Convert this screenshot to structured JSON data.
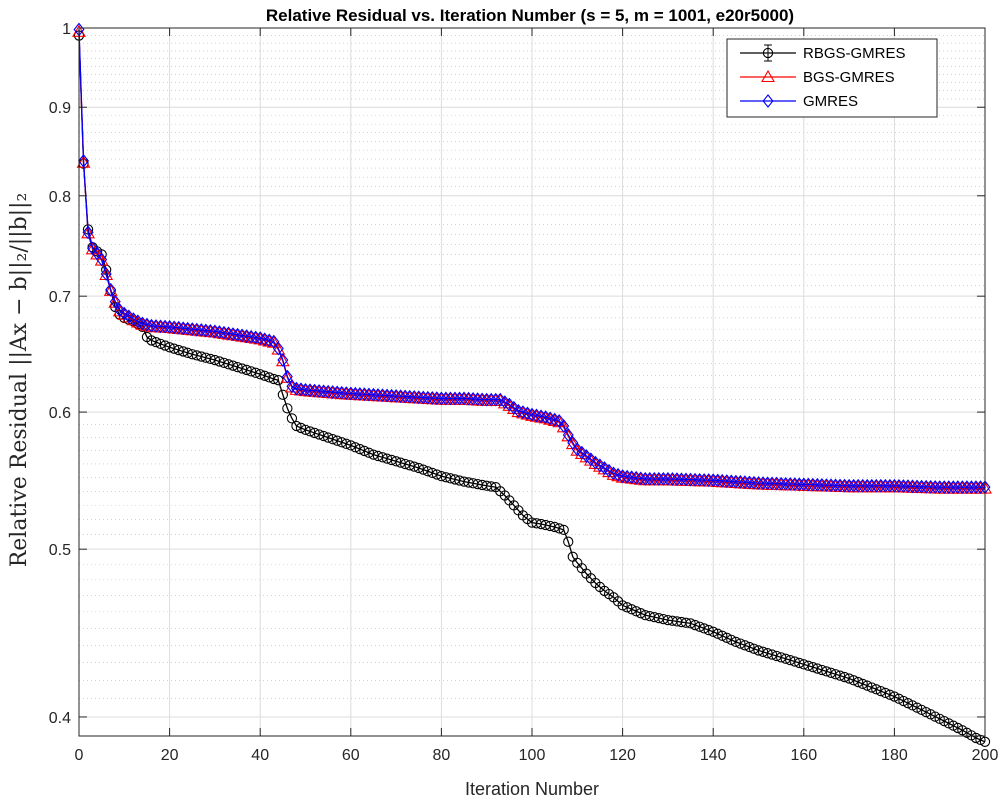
{
  "chart_data": {
    "type": "line",
    "title": "Relative Residual vs. Iteration Number (s = 5, m = 1001, e20r5000)",
    "xlabel": "Iteration Number",
    "ylabel": "Relative Residual ||Ax − b||₂/||b||₂",
    "xlim": [
      0,
      200
    ],
    "ylim": [
      0.39,
      1.0
    ],
    "yscale": "log",
    "grid": true,
    "legend_position": "top-right",
    "x_ticks": [
      "0",
      "20",
      "40",
      "60",
      "80",
      "100",
      "120",
      "140",
      "160",
      "180",
      "200"
    ],
    "y_ticks": [
      "0.4",
      "0.5",
      "0.6",
      "0.7",
      "0.8",
      "0.9",
      "1"
    ],
    "x_tick_values": [
      0,
      20,
      40,
      60,
      80,
      100,
      120,
      140,
      160,
      180,
      200
    ],
    "y_tick_values": [
      0.4,
      0.5,
      0.6,
      0.7,
      0.8,
      0.9,
      1.0
    ],
    "series": [
      {
        "name": "RBGS-GMRES",
        "color": "#000000",
        "marker": "circle",
        "x": [
          0,
          1,
          2,
          3,
          4,
          5,
          6,
          7,
          8,
          9,
          10,
          12,
          14,
          15,
          16,
          18,
          20,
          25,
          30,
          35,
          40,
          43,
          44,
          45,
          46,
          47,
          48,
          50,
          55,
          60,
          65,
          70,
          75,
          80,
          85,
          90,
          92,
          94,
          96,
          98,
          100,
          102,
          105,
          107,
          108,
          109,
          110,
          112,
          114,
          116,
          118,
          120,
          125,
          130,
          135,
          140,
          145,
          150,
          155,
          160,
          165,
          170,
          175,
          180,
          185,
          190,
          195,
          198,
          200
        ],
        "y": [
          0.99,
          0.835,
          0.765,
          0.747,
          0.743,
          0.74,
          0.725,
          0.705,
          0.69,
          0.683,
          0.68,
          0.677,
          0.672,
          0.663,
          0.66,
          0.657,
          0.654,
          0.648,
          0.643,
          0.637,
          0.631,
          0.627,
          0.626,
          0.614,
          0.603,
          0.595,
          0.589,
          0.586,
          0.58,
          0.574,
          0.567,
          0.562,
          0.557,
          0.551,
          0.547,
          0.544,
          0.543,
          0.537,
          0.53,
          0.523,
          0.518,
          0.517,
          0.515,
          0.513,
          0.505,
          0.495,
          0.491,
          0.484,
          0.478,
          0.473,
          0.469,
          0.464,
          0.458,
          0.455,
          0.453,
          0.448,
          0.442,
          0.437,
          0.433,
          0.429,
          0.425,
          0.421,
          0.416,
          0.411,
          0.405,
          0.399,
          0.393,
          0.389,
          0.387
        ]
      },
      {
        "name": "BGS-GMRES",
        "color": "#ff0000",
        "marker": "triangle",
        "x": [
          0,
          1,
          2,
          3,
          4,
          5,
          6,
          7,
          8,
          9,
          10,
          12,
          14,
          16,
          20,
          25,
          30,
          35,
          40,
          42,
          43,
          44,
          45,
          46,
          47,
          48,
          50,
          60,
          70,
          80,
          85,
          90,
          93,
          95,
          97,
          100,
          103,
          106,
          107,
          108,
          109,
          110,
          112,
          114,
          116,
          118,
          120,
          125,
          130,
          140,
          150,
          160,
          170,
          180,
          190,
          200
        ],
        "y": [
          0.995,
          0.836,
          0.761,
          0.745,
          0.74,
          0.734,
          0.72,
          0.705,
          0.694,
          0.686,
          0.683,
          0.678,
          0.674,
          0.672,
          0.671,
          0.669,
          0.667,
          0.664,
          0.661,
          0.659,
          0.658,
          0.652,
          0.642,
          0.628,
          0.62,
          0.618,
          0.617,
          0.614,
          0.612,
          0.61,
          0.61,
          0.609,
          0.609,
          0.605,
          0.6,
          0.597,
          0.595,
          0.592,
          0.588,
          0.581,
          0.575,
          0.57,
          0.565,
          0.56,
          0.556,
          0.552,
          0.55,
          0.548,
          0.548,
          0.547,
          0.545,
          0.544,
          0.543,
          0.543,
          0.542,
          0.542
        ]
      },
      {
        "name": "GMRES",
        "color": "#0000ff",
        "marker": "diamond",
        "x": [
          0,
          1,
          2,
          3,
          4,
          5,
          6,
          7,
          8,
          9,
          10,
          12,
          14,
          16,
          20,
          25,
          30,
          35,
          40,
          42,
          43,
          44,
          45,
          46,
          47,
          48,
          50,
          60,
          70,
          80,
          85,
          90,
          93,
          95,
          97,
          100,
          103,
          106,
          107,
          108,
          109,
          110,
          112,
          114,
          116,
          118,
          120,
          125,
          130,
          140,
          150,
          160,
          170,
          180,
          190,
          200
        ],
        "y": [
          0.998,
          0.838,
          0.762,
          0.746,
          0.741,
          0.735,
          0.721,
          0.706,
          0.695,
          0.687,
          0.684,
          0.679,
          0.675,
          0.673,
          0.672,
          0.67,
          0.668,
          0.665,
          0.662,
          0.66,
          0.659,
          0.653,
          0.643,
          0.629,
          0.621,
          0.619,
          0.618,
          0.615,
          0.613,
          0.611,
          0.611,
          0.61,
          0.61,
          0.606,
          0.601,
          0.598,
          0.596,
          0.593,
          0.589,
          0.582,
          0.576,
          0.571,
          0.566,
          0.561,
          0.557,
          0.553,
          0.551,
          0.549,
          0.549,
          0.548,
          0.546,
          0.545,
          0.544,
          0.544,
          0.543,
          0.543
        ]
      }
    ]
  }
}
